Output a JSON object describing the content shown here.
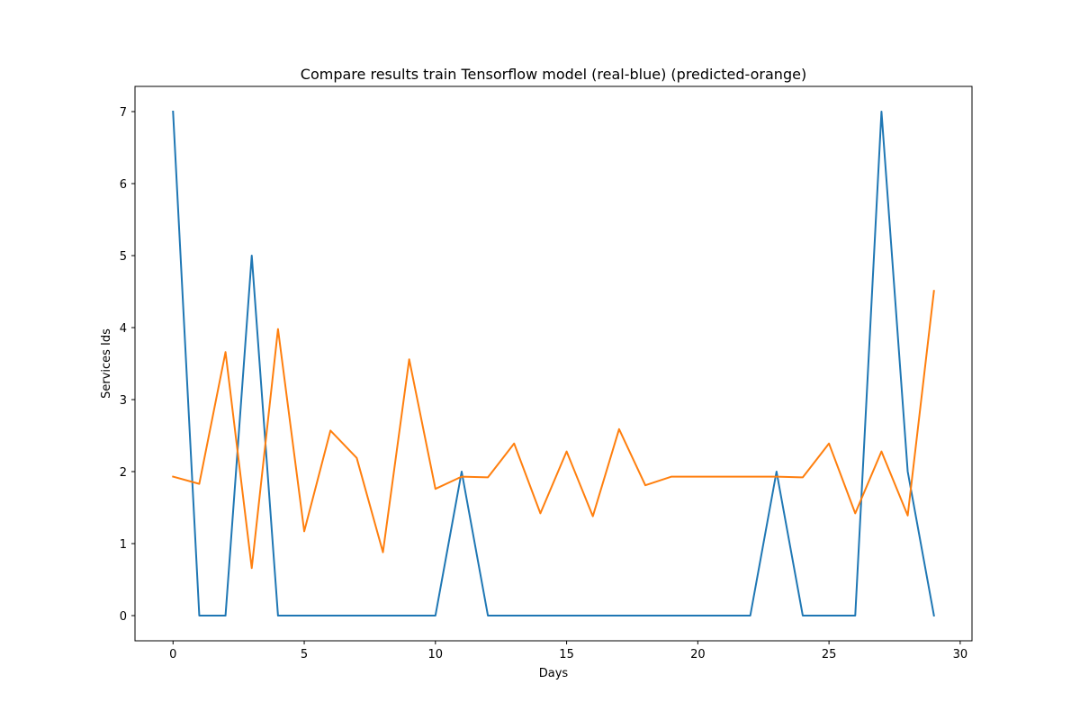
{
  "chart_data": {
    "type": "line",
    "title": "Compare results train Tensorflow model (real-blue) (predicted-orange)",
    "xlabel": "Days",
    "ylabel": "Services Ids",
    "xlim": [
      -1.45,
      30.45
    ],
    "ylim": [
      -0.35,
      7.35
    ],
    "xticks": [
      0,
      5,
      10,
      15,
      20,
      25,
      30
    ],
    "yticks": [
      0,
      1,
      2,
      3,
      4,
      5,
      6,
      7
    ],
    "grid": false,
    "legend": "none",
    "x": [
      0,
      1,
      2,
      3,
      4,
      5,
      6,
      7,
      8,
      9,
      10,
      11,
      12,
      13,
      14,
      15,
      16,
      17,
      18,
      19,
      20,
      21,
      22,
      23,
      24,
      25,
      26,
      27,
      28,
      29
    ],
    "series": [
      {
        "color": "#1f77b4",
        "values": [
          7,
          0,
          0,
          5,
          0,
          0,
          0,
          0,
          0,
          0,
          0,
          2,
          0,
          0,
          0,
          0,
          0,
          0,
          0,
          0,
          0,
          0,
          0,
          2,
          0,
          0,
          0,
          7,
          2,
          0
        ]
      },
      {
        "color": "#ff7f0e",
        "values": [
          1.93,
          1.83,
          3.66,
          0.66,
          3.98,
          1.17,
          2.57,
          2.19,
          0.88,
          3.56,
          1.76,
          1.93,
          1.92,
          2.39,
          1.42,
          2.28,
          1.38,
          2.59,
          1.81,
          1.93,
          1.93,
          1.93,
          1.93,
          1.93,
          1.92,
          2.39,
          1.42,
          2.28,
          1.39,
          4.51
        ]
      }
    ]
  }
}
